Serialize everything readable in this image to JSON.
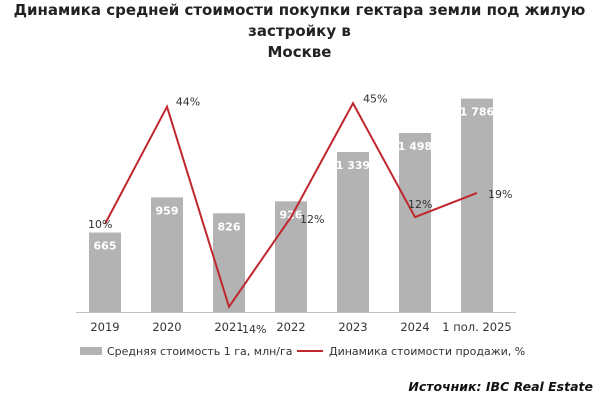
{
  "chart_data": {
    "type": "bar",
    "title_lines": [
      "Динамика средней стоимости покупки гектара земли под жилую застройку в",
      "Москве"
    ],
    "categories": [
      "2019",
      "2020",
      "2021",
      "2022",
      "2023",
      "2024",
      "1 пол. 2025"
    ],
    "series": [
      {
        "name": "Средняя стоимость 1 га, млн/га",
        "type": "bar",
        "values": [
          665,
          959,
          826,
          926,
          1339,
          1498,
          1786
        ],
        "labels": [
          "665",
          "959",
          "826",
          "926",
          "1 339",
          "1 498",
          "1 786"
        ],
        "color": "#b3b3b3"
      },
      {
        "name": "Динамика стоимости продажи, %",
        "type": "line",
        "values": [
          10,
          44,
          -14,
          12,
          45,
          12,
          19
        ],
        "labels": [
          "10%",
          "44%",
          "-14%",
          "12%",
          "45%",
          "12%",
          "19%"
        ],
        "color": "#c0272d"
      }
    ],
    "ylim_bar": [
      0,
      2000
    ],
    "ylim_line": [
      -20,
      50
    ],
    "grid": false,
    "legend": "bottom"
  },
  "source": "Источник: IBC Real Estate"
}
